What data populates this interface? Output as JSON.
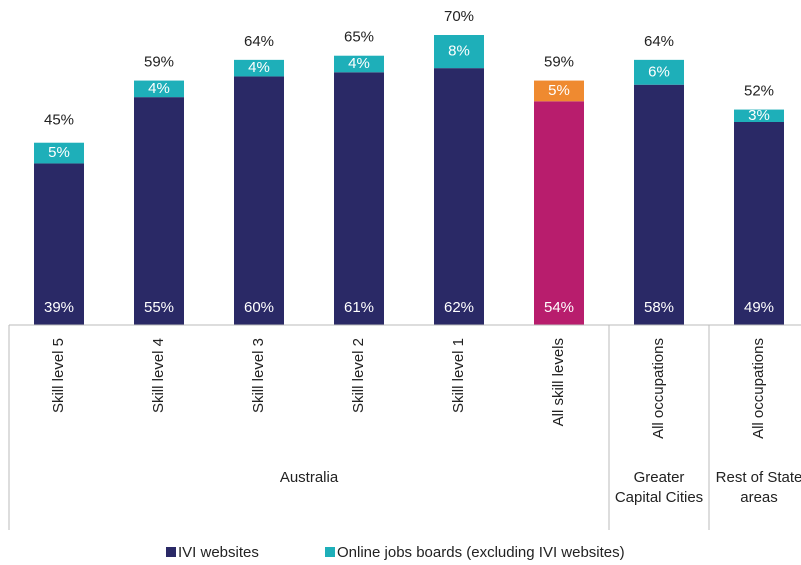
{
  "chart_data": {
    "type": "stacked_bar",
    "categories": [
      "Skill level 5",
      "Skill level 4",
      "Skill level 3",
      "Skill level 2",
      "Skill level 1",
      "All skill levels",
      "All occupations",
      "All occupations"
    ],
    "groups": [
      {
        "label": "Australia",
        "span": 6
      },
      {
        "label": "Greater Capital Cities",
        "span": 1
      },
      {
        "label": "Rest of State areas",
        "span": 1
      }
    ],
    "series": [
      {
        "name": "IVI websites",
        "color": "#2a2966",
        "colors": [
          "#2a2966",
          "#2a2966",
          "#2a2966",
          "#2a2966",
          "#2a2966",
          "#b81d6d",
          "#2a2966",
          "#2a2966"
        ],
        "values": [
          39,
          55,
          60,
          61,
          62,
          54,
          58,
          49
        ],
        "value_labels": [
          "39%",
          "55%",
          "60%",
          "61%",
          "62%",
          "54%",
          "58%",
          "49%"
        ]
      },
      {
        "name": "Online jobs boards (excluding IVI websites)",
        "color": "#1eafb9",
        "colors": [
          "#1eafb9",
          "#1eafb9",
          "#1eafb9",
          "#1eafb9",
          "#1eafb9",
          "#ef8a30",
          "#1eafb9",
          "#1eafb9"
        ],
        "values": [
          5,
          4,
          4,
          4,
          8,
          5,
          6,
          3
        ],
        "value_labels": [
          "5%",
          "4%",
          "4%",
          "4%",
          "8%",
          "5%",
          "6%",
          "3%"
        ]
      }
    ],
    "totals": {
      "values": [
        45,
        59,
        64,
        65,
        70,
        59,
        64,
        52
      ],
      "value_labels": [
        "45%",
        "59%",
        "64%",
        "65%",
        "70%",
        "59%",
        "64%",
        "52%"
      ]
    },
    "ylim": [
      0,
      70
    ],
    "legend": "bottom"
  }
}
